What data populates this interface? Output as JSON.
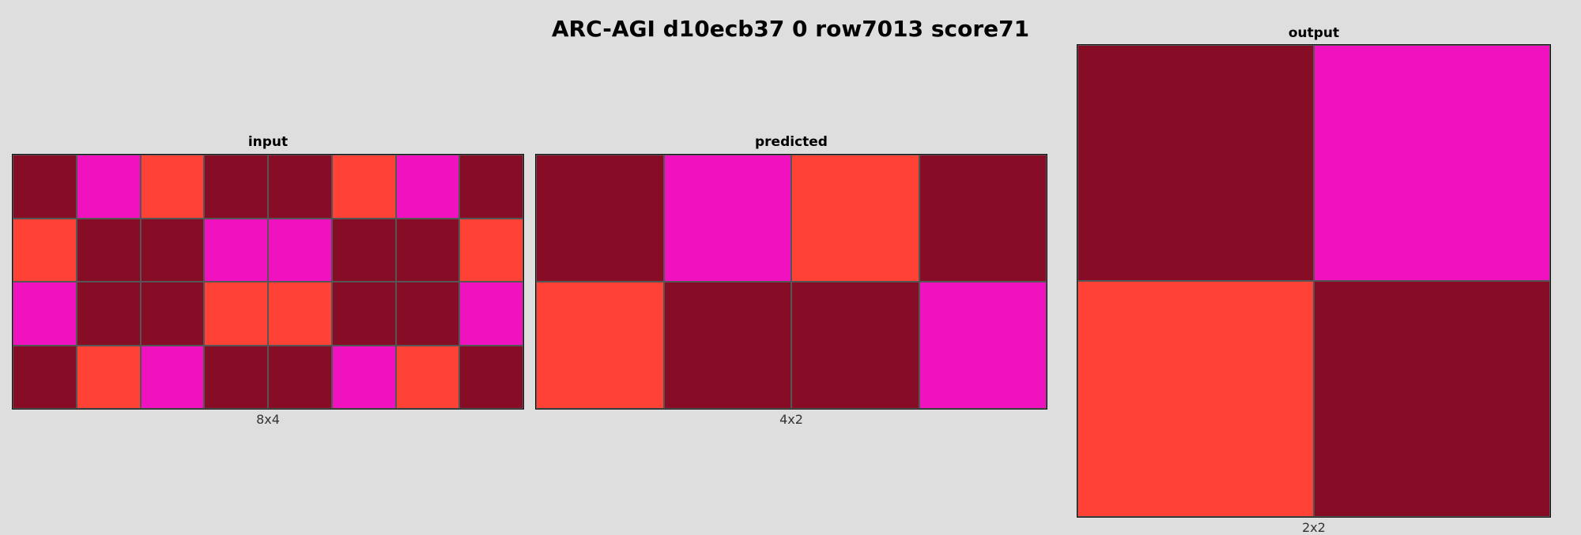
{
  "title": "ARC-AGI d10ecb37 0 row7013 score71",
  "palette": {
    "0": "#870c25",
    "1": "#f012be",
    "2": "#ff4136"
  },
  "panels": {
    "input": {
      "label": "input",
      "dims": "8x4",
      "rows": [
        [
          0,
          1,
          2,
          0,
          0,
          2,
          1,
          0
        ],
        [
          2,
          0,
          0,
          1,
          1,
          0,
          0,
          2
        ],
        [
          1,
          0,
          0,
          2,
          2,
          0,
          0,
          1
        ],
        [
          0,
          2,
          1,
          0,
          0,
          1,
          2,
          0
        ]
      ]
    },
    "predicted": {
      "label": "predicted",
      "dims": "4x2",
      "rows": [
        [
          0,
          1,
          2,
          0
        ],
        [
          2,
          0,
          0,
          1
        ]
      ]
    },
    "output": {
      "label": "output",
      "dims": "2x2",
      "rows": [
        [
          0,
          1
        ],
        [
          2,
          0
        ]
      ]
    }
  }
}
